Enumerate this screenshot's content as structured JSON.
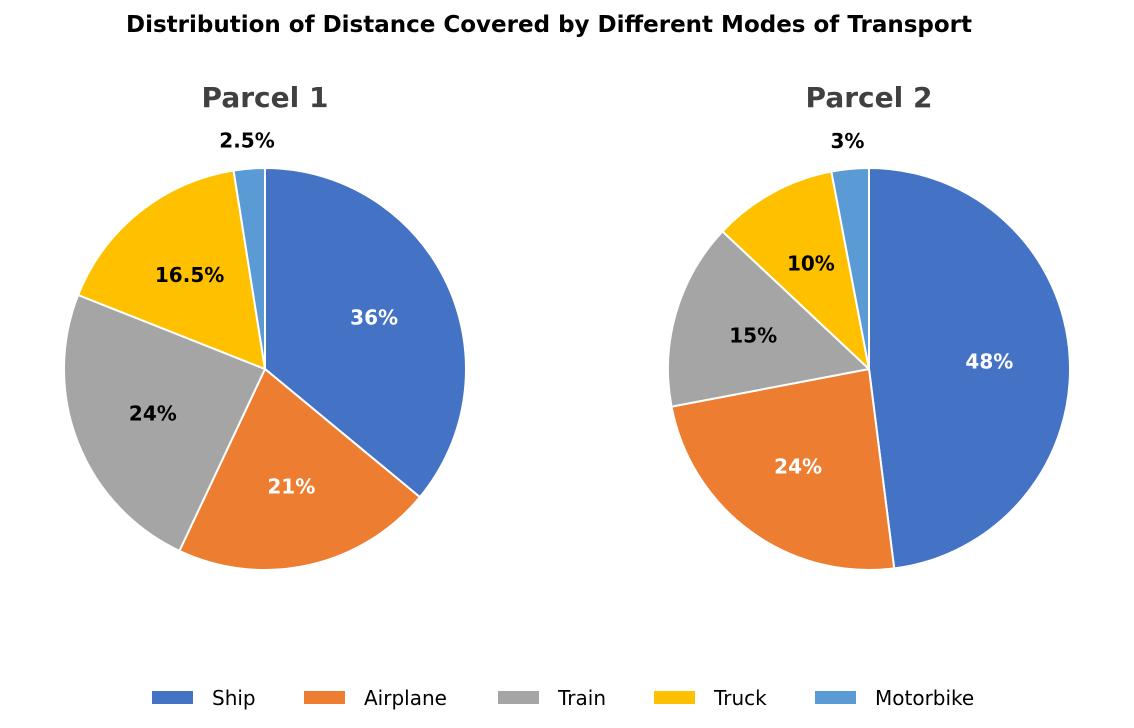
{
  "chart_data": {
    "type": "pie",
    "title": "Distribution of Distance Covered by Different Modes of Transport",
    "categories": [
      "Ship",
      "Airplane",
      "Train",
      "Truck",
      "Motorbike"
    ],
    "colors": [
      "#4472C4",
      "#ED7D31",
      "#A5A5A5",
      "#FFC000",
      "#5B9BD5"
    ],
    "label_colors": [
      "#ffffff",
      "#ffffff",
      "#000000",
      "#000000",
      "#000000"
    ],
    "legend_position": "bottom",
    "pies": [
      {
        "title": "Parcel 1",
        "values": [
          36,
          21,
          24,
          16.5,
          2.5
        ],
        "labels": [
          "36%",
          "21%",
          "24%",
          "16.5%",
          "2.5%"
        ]
      },
      {
        "title": "Parcel 2",
        "values": [
          48,
          24,
          15,
          10,
          3
        ],
        "labels": [
          "48%",
          "24%",
          "15%",
          "10%",
          "3%"
        ]
      }
    ]
  }
}
